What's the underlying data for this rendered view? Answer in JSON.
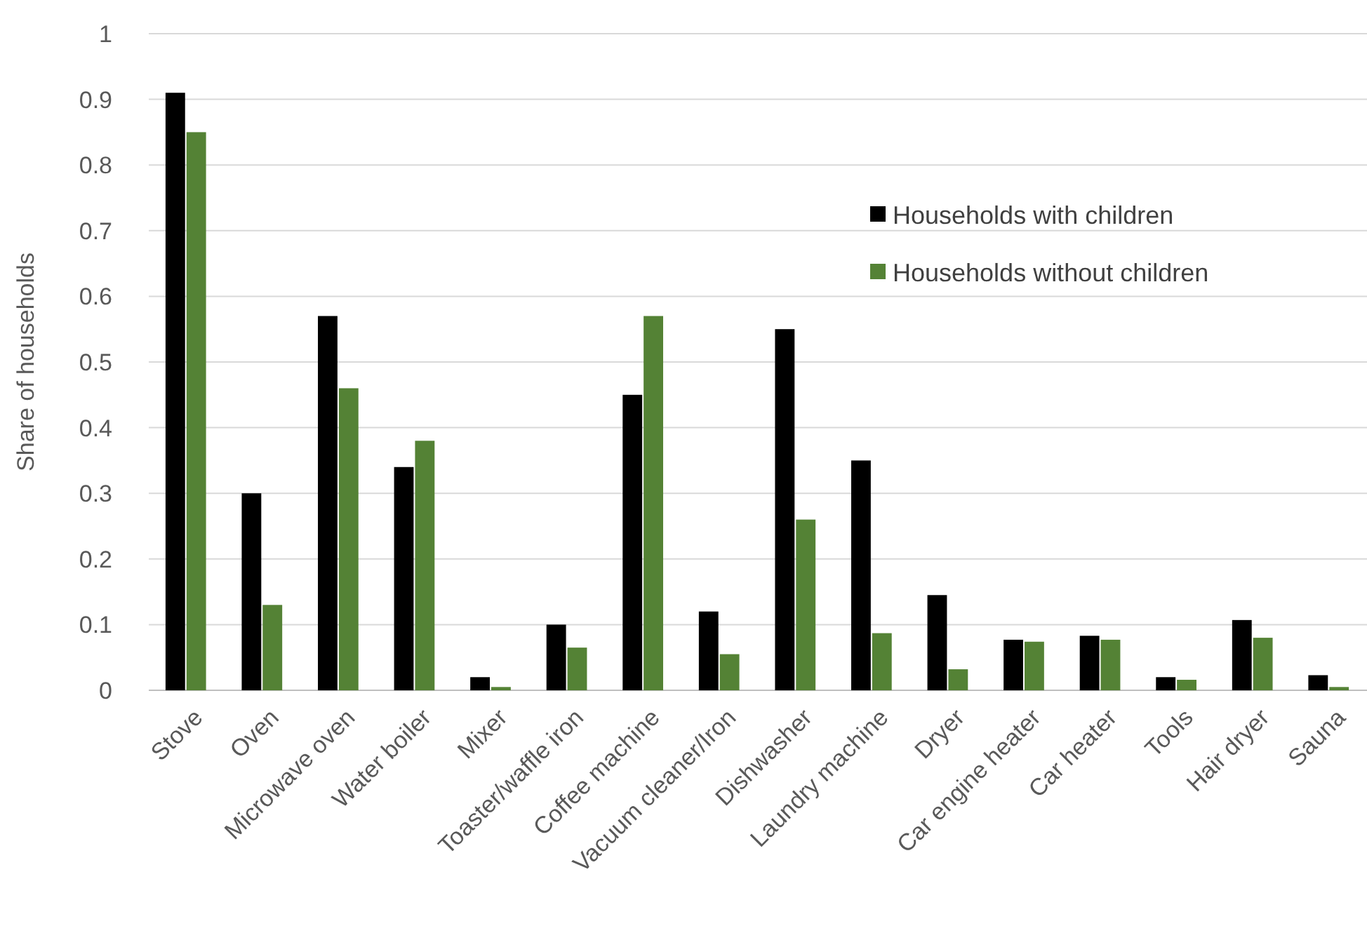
{
  "chart_data": {
    "type": "bar",
    "ylabel": "Share of households",
    "categories": [
      "Stove",
      "Oven",
      "Microwave oven",
      "Water boiler",
      "Mixer",
      "Toaster/waffle iron",
      "Coffee machine",
      "Vacuum cleaner/Iron",
      "Dishwasher",
      "Laundry machine",
      "Dryer",
      "Car engine heater",
      "Car heater",
      "Tools",
      "Hair dryer",
      "Sauna"
    ],
    "series": [
      {
        "name": "Households with children",
        "color": "#000000",
        "values": [
          0.91,
          0.3,
          0.57,
          0.34,
          0.02,
          0.1,
          0.45,
          0.12,
          0.55,
          0.35,
          0.145,
          0.077,
          0.083,
          0.02,
          0.107,
          0.023
        ]
      },
      {
        "name": "Households without children",
        "color": "#548235",
        "values": [
          0.85,
          0.13,
          0.46,
          0.38,
          0.005,
          0.065,
          0.57,
          0.055,
          0.26,
          0.087,
          0.032,
          0.074,
          0.077,
          0.016,
          0.08,
          0.005
        ]
      }
    ],
    "ylim": [
      0,
      1
    ],
    "yticks": [
      0,
      0.1,
      0.2,
      0.3,
      0.4,
      0.5,
      0.6,
      0.7,
      0.8,
      0.9,
      1
    ],
    "grid": "y",
    "legend": "top right"
  }
}
